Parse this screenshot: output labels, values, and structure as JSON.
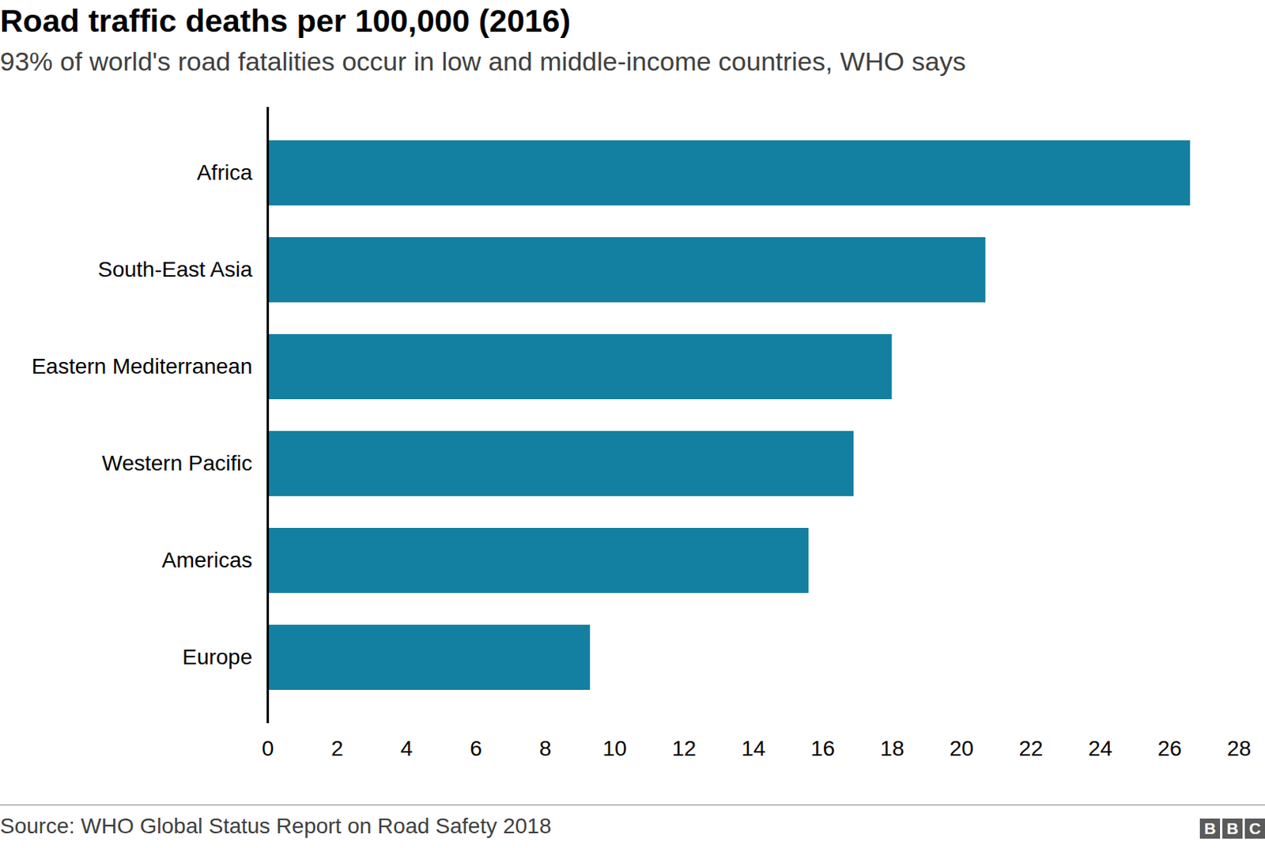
{
  "chart_data": {
    "type": "bar",
    "title": "Road traffic deaths per 100,000 (2016)",
    "subtitle": "93% of world's road fatalities occur in low and middle-income countries, WHO says",
    "categories": [
      "Africa",
      "South-East Asia",
      "Eastern Mediterranean",
      "Western Pacific",
      "Americas",
      "Europe"
    ],
    "values": [
      26.6,
      20.7,
      18.0,
      16.9,
      15.6,
      9.3
    ],
    "color": "#1380a1",
    "orientation": "horizontal",
    "xlim": [
      0,
      28
    ],
    "xticks": [
      0,
      2,
      4,
      6,
      8,
      10,
      12,
      14,
      16,
      18,
      20,
      22,
      24,
      26,
      28
    ],
    "grid": false,
    "source": "Source: WHO Global Status Report on Road Safety 2018",
    "logo": "BBC"
  }
}
